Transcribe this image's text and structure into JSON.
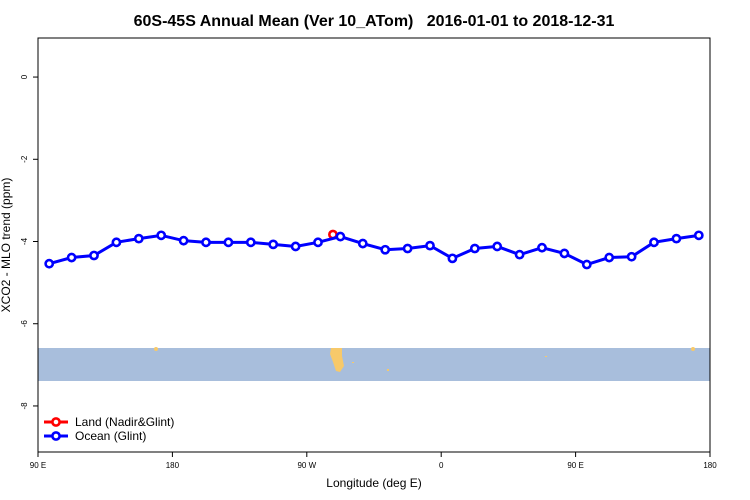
{
  "chart_data": {
    "type": "line",
    "title": "60S-45S Annual Mean (Ver 10_ATom)   2016-01-01 to 2018-12-31",
    "x_label": "Longitude (deg E)",
    "y_label": "XCO2 - MLO trend (ppm)",
    "xlim": [
      90,
      540
    ],
    "xticks": [
      {
        "value": 90,
        "label": "90 E"
      },
      180,
      {
        "value": 270,
        "label": "90 W"
      },
      {
        "value": 360,
        "label": "0"
      },
      {
        "value": 450,
        "label": "90 E"
      },
      {
        "value": 540,
        "label": "180"
      }
    ],
    "ylim": [
      -9.12,
      0.95
    ],
    "yticks": [
      0,
      -2,
      -4,
      -6,
      -8
    ],
    "legend": "bottom-left",
    "series": [
      {
        "name": "Land (Nadir&Glint)",
        "color": "#ff0000",
        "x": [
          287.5
        ],
        "values": [
          -3.83
        ]
      },
      {
        "name": "Ocean (Glint)",
        "color": "#0000ff",
        "x": [
          97.5,
          112.5,
          127.5,
          142.5,
          157.5,
          172.5,
          187.5,
          202.5,
          217.5,
          232.5,
          247.5,
          262.5,
          277.5,
          292.5,
          307.5,
          322.5,
          337.5,
          352.5,
          367.5,
          382.5,
          397.5,
          412.5,
          427.5,
          442.5,
          457.5,
          472.5,
          487.5,
          502.5,
          517.5,
          532.5
        ],
        "values": [
          -4.54,
          -4.39,
          -4.34,
          -4.02,
          -3.93,
          -3.85,
          -3.98,
          -4.02,
          -4.02,
          -4.02,
          -4.07,
          -4.12,
          -4.02,
          -3.88,
          -4.05,
          -4.2,
          -4.17,
          -4.1,
          -4.41,
          -4.17,
          -4.12,
          -4.32,
          -4.15,
          -4.29,
          -4.56,
          -4.39,
          -4.37,
          -4.02,
          -3.93,
          -3.85
        ]
      }
    ]
  }
}
